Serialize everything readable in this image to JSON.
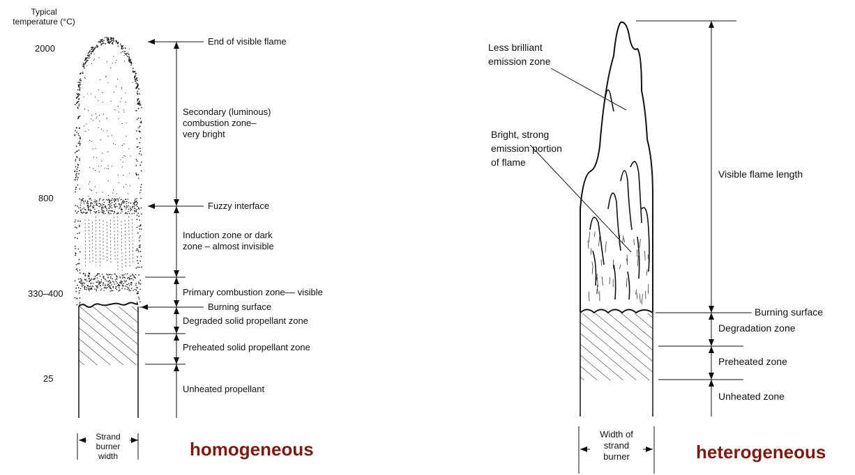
{
  "homogeneous": {
    "temperature_header": "Typical\ntemperature (°C)",
    "temperatures": [
      "2000",
      "800",
      "330–400",
      "25"
    ],
    "labels": {
      "end_of_flame": "End of visible flame",
      "secondary_zone": "Secondary (luminous)\ncombustion zone–\nvery bright",
      "fuzzy_interface": "Fuzzy interface",
      "induction_zone": "Induction zone or dark\nzone – almost invisible",
      "primary_zone": "Primary combustion zone–– visible",
      "burning_surface": "Burning surface",
      "degraded_zone": "Degraded solid propellant zone",
      "preheated_zone": "Preheated solid propellant zone",
      "unheated": "Unheated propellant"
    },
    "width_label": "Strand\nburner\nwidth",
    "caption": "homogeneous"
  },
  "heterogeneous": {
    "labels": {
      "less_brilliant": "Less brilliant\nemission zone",
      "bright_strong": "Bright, strong\nemission portion\nof flame",
      "visible_flame_length": "Visible flame length",
      "burning_surface": "Burning surface",
      "degradation_zone": "Degradation zone",
      "preheated_zone": "Preheated zone",
      "unheated_zone": "Unheated zone"
    },
    "width_label": "Width of\nstrand\nburner",
    "caption": "heterogeneous"
  },
  "colors": {
    "caption": "#7b1c14",
    "ink": "#111111"
  }
}
